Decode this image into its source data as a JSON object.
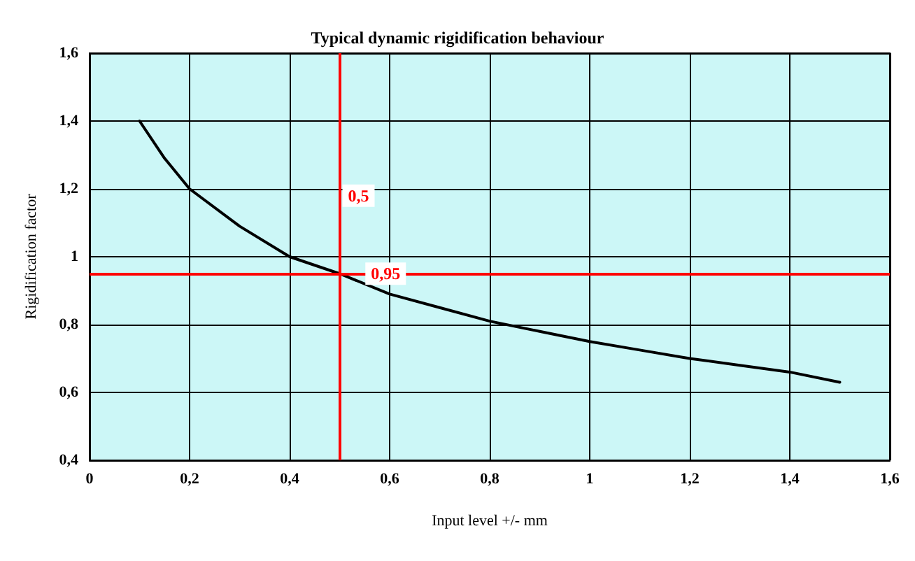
{
  "chart_data": {
    "type": "line",
    "title": "Typical dynamic rigidification behaviour",
    "xlabel": "Input level +/- mm",
    "ylabel": "Rigidification factor",
    "x": [
      0.1,
      0.15,
      0.2,
      0.3,
      0.4,
      0.5,
      0.6,
      0.7,
      0.8,
      0.9,
      1.0,
      1.1,
      1.2,
      1.3,
      1.4,
      1.5
    ],
    "series": [
      {
        "color": "#000000",
        "values": [
          1.4,
          1.29,
          1.2,
          1.09,
          1.0,
          0.95,
          0.89,
          0.85,
          0.81,
          0.78,
          0.75,
          0.725,
          0.7,
          0.68,
          0.66,
          0.63
        ]
      }
    ],
    "xlim": [
      0,
      1.6
    ],
    "xticks": [
      0,
      {
        "value": 0.2,
        "label": "0,2"
      },
      {
        "value": 0.4,
        "label": "0,4"
      },
      {
        "value": 0.6,
        "label": "0,6"
      },
      {
        "value": 0.8,
        "label": "0,8"
      },
      1,
      {
        "value": 1.2,
        "label": "1,2"
      },
      {
        "value": 1.4,
        "label": "1,4"
      },
      {
        "value": 1.6,
        "label": "1,6"
      }
    ],
    "ylim": [
      0.4,
      1.6
    ],
    "yticks": [
      {
        "value": 0.4,
        "label": "0,4"
      },
      {
        "value": 0.6,
        "label": "0,6"
      },
      {
        "value": 0.8,
        "label": "0,8"
      },
      1,
      {
        "value": 1.2,
        "label": "1,2"
      },
      {
        "value": 1.4,
        "label": "1,4"
      },
      {
        "value": 1.6,
        "label": "1,6"
      }
    ],
    "ref_lines": [
      {
        "axis": "x",
        "value": 0.5,
        "label": "0,5",
        "color": "#ff0000"
      },
      {
        "axis": "y",
        "value": 0.95,
        "label": "0,95",
        "color": "#ff0000"
      }
    ],
    "grid": true,
    "marker": "none",
    "line_style": "solid"
  }
}
